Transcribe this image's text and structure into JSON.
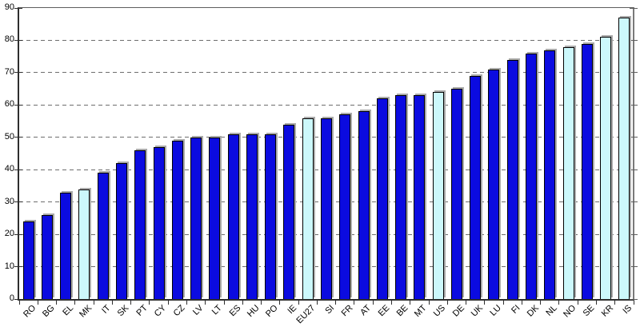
{
  "chart_data": {
    "type": "bar",
    "title": "",
    "xlabel": "",
    "ylabel": "",
    "categories": [
      "RO",
      "BG",
      "EL",
      "MK",
      "IT",
      "SK",
      "PT",
      "CY",
      "CZ",
      "LV",
      "LT",
      "ES",
      "HU",
      "PO",
      "IE",
      "EU27",
      "SI",
      "FR",
      "AT",
      "EE",
      "BE",
      "MT",
      "US",
      "DE",
      "UK",
      "LU",
      "FI",
      "DK",
      "NL",
      "NO",
      "SE",
      "KR",
      "IS"
    ],
    "values": [
      24,
      26,
      33,
      34,
      39,
      42,
      46,
      47,
      49,
      50,
      50,
      51,
      51,
      51,
      54,
      56,
      56,
      57,
      58,
      62,
      63,
      63,
      64,
      65,
      69,
      71,
      74,
      76,
      77,
      78,
      79,
      81,
      87
    ],
    "highlighted_categories": [
      "MK",
      "EU27",
      "US",
      "NO",
      "KR",
      "IS"
    ],
    "ylim": [
      0,
      90
    ],
    "ytick_interval": 10,
    "ytick_labels": [
      "0",
      "10",
      "20",
      "30",
      "40",
      "50",
      "60",
      "70",
      "80",
      "90"
    ],
    "grid": "horizontal-dashed",
    "legend": "none",
    "colors": {
      "bar_default": "#0b0be0",
      "bar_highlight": "#ccf8fb",
      "bar_border": "#000000",
      "bar_shadow": "#ababab",
      "gridline": "#6e6e6e",
      "axis": "#2e2e2e"
    }
  }
}
